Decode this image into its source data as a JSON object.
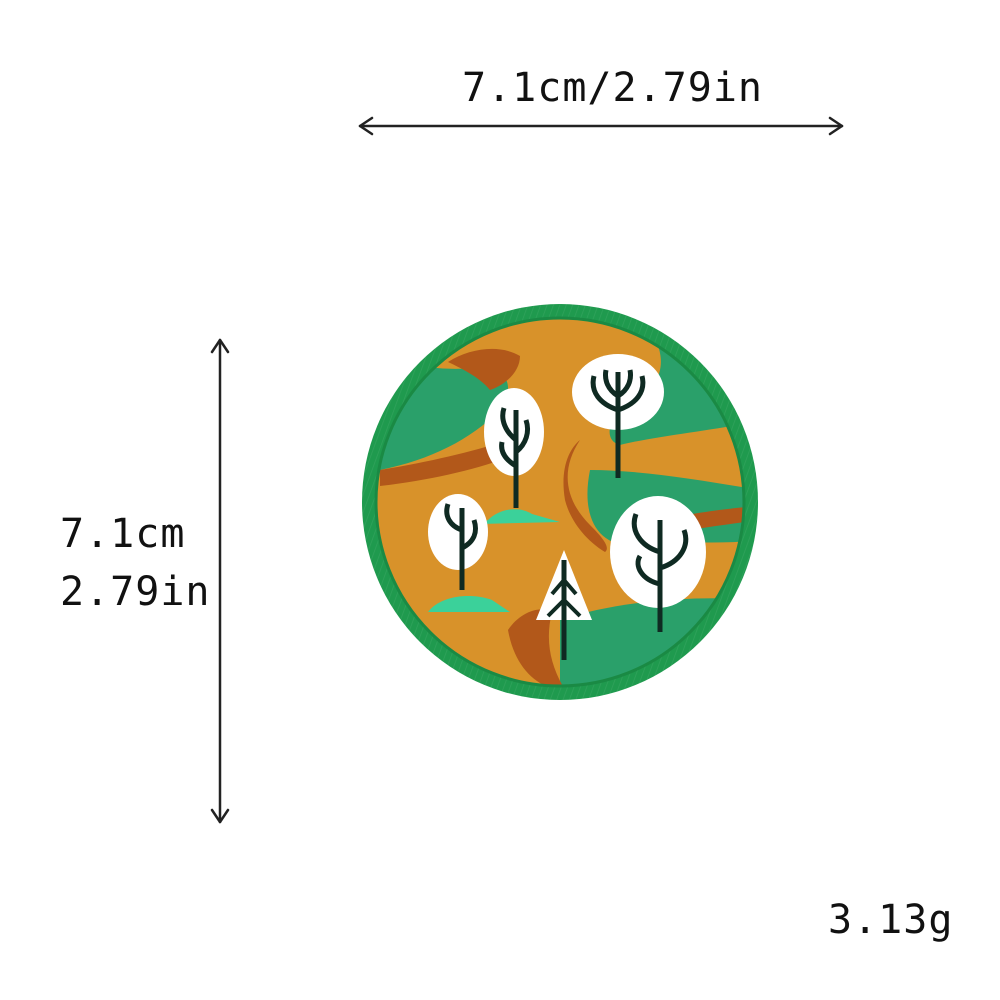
{
  "dimensions": {
    "width_label": "7.1cm/2.79in",
    "height_label_cm": "7.1cm",
    "height_label_in": "2.79in"
  },
  "weight_label": "3.13g",
  "product": {
    "name": "round-embroidered-forest-patch"
  },
  "colors": {
    "border_green": "#1f9a4e",
    "field_green": "#2aa06a",
    "path_orange": "#d8922a",
    "path_brown": "#b2581a",
    "tree_white": "#ffffff",
    "tree_dark": "#0f2a22",
    "mint_grass": "#3bd19a",
    "arrow_color": "#222222"
  }
}
